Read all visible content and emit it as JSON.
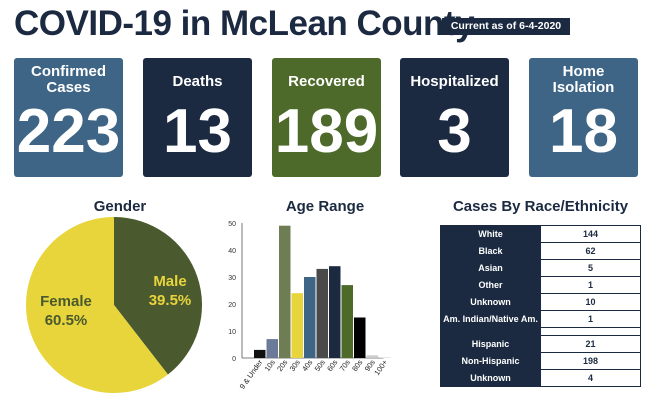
{
  "header": {
    "title": "COVID-19 in McLean County",
    "date_tag": "Current as of 6-4-2020"
  },
  "colors": {
    "navy": "#1b2a41",
    "steel_blue": "#3e6585",
    "olive": "#4d6a2a",
    "yellow": "#e8d53c",
    "dark_olive": "#4a5a2e"
  },
  "cards": [
    {
      "label": "Confirmed Cases",
      "value": "223",
      "color": "#3e6585"
    },
    {
      "label": "Deaths",
      "value": "13",
      "color": "#1b2a41"
    },
    {
      "label": "Recovered",
      "value": "189",
      "color": "#4d6a2a"
    },
    {
      "label": "Hospitalized",
      "value": "3",
      "color": "#1b2a41"
    },
    {
      "label": "Home Isolation",
      "value": "18",
      "color": "#3e6585"
    }
  ],
  "chart_data": [
    {
      "type": "pie",
      "title": "Gender",
      "slices": [
        {
          "label": "Male",
          "value": 39.5,
          "value_label": "39.5%",
          "color": "#4a5a2e",
          "text_color": "#e8d53c"
        },
        {
          "label": "Female",
          "value": 60.5,
          "value_label": "60.5%",
          "color": "#e8d53c",
          "text_color": "#4a5a2e"
        }
      ]
    },
    {
      "type": "bar",
      "title": "Age Range",
      "categories": [
        "9 & Under",
        "10s",
        "20s",
        "30s",
        "40s",
        "50s",
        "60s",
        "70s",
        "80s",
        "90s",
        "100+"
      ],
      "values": [
        3,
        7,
        49,
        24,
        30,
        33,
        34,
        27,
        15,
        1,
        0
      ],
      "colors": [
        "#111111",
        "#6b7a99",
        "#6f7d55",
        "#e8d53c",
        "#3e6585",
        "#4a4a4a",
        "#1b2a41",
        "#4d6a2a",
        "#000000",
        "#cccccc",
        "#cccccc"
      ],
      "ylim": [
        0,
        50
      ],
      "yticks": [
        0,
        10,
        20,
        30,
        40,
        50
      ],
      "xlabel": "",
      "ylabel": ""
    },
    {
      "type": "table",
      "title": "Cases By Race/Ethnicity",
      "rows_race": [
        {
          "label": "White",
          "value": "144"
        },
        {
          "label": "Black",
          "value": "62"
        },
        {
          "label": "Asian",
          "value": "5"
        },
        {
          "label": "Other",
          "value": "1"
        },
        {
          "label": "Unknown",
          "value": "10"
        },
        {
          "label": "Am. Indian/Native Am.",
          "value": "1"
        }
      ],
      "rows_ethnicity": [
        {
          "label": "Hispanic",
          "value": "21"
        },
        {
          "label": "Non-Hispanic",
          "value": "198"
        },
        {
          "label": "Unknown",
          "value": "4"
        }
      ]
    }
  ]
}
